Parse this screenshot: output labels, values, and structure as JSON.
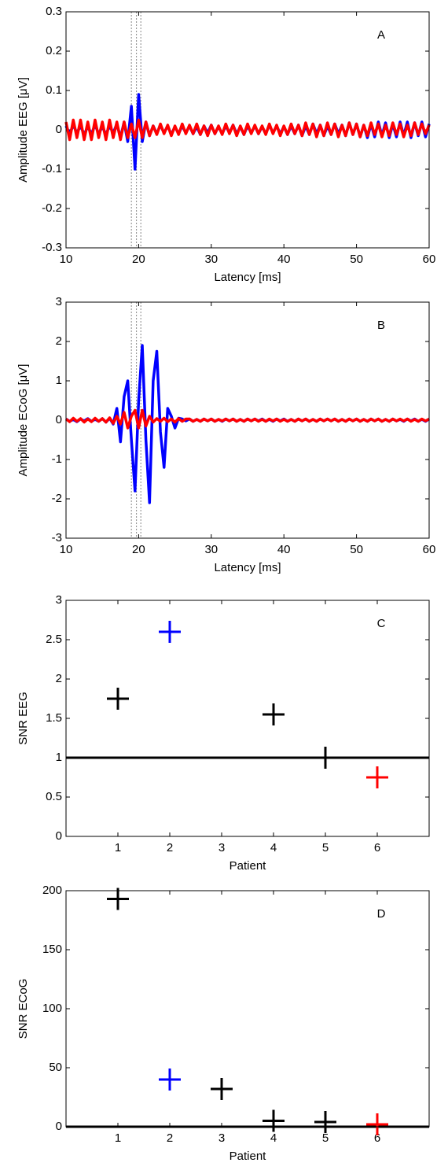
{
  "chart_data": [
    {
      "type": "line",
      "annotation": "A",
      "xlabel": "Latency [ms]",
      "ylabel": "Amplitude EEG [μV]",
      "x": [
        10,
        10.5,
        11,
        11.5,
        12,
        12.5,
        13,
        13.5,
        14,
        14.5,
        15,
        15.5,
        16,
        16.5,
        17,
        17.5,
        18,
        18.5,
        19,
        19.5,
        20,
        20.5,
        21,
        21.5,
        22,
        22.5,
        23,
        23.5,
        24,
        24.5,
        25,
        25.5,
        26,
        26.5,
        27,
        27.5,
        28,
        28.5,
        29,
        29.5,
        30,
        30.5,
        31,
        31.5,
        32,
        32.5,
        33,
        33.5,
        34,
        34.5,
        35,
        35.5,
        36,
        36.5,
        37,
        37.5,
        38,
        38.5,
        39,
        39.5,
        40,
        40.5,
        41,
        41.5,
        42,
        42.5,
        43,
        43.5,
        44,
        44.5,
        45,
        45.5,
        46,
        46.5,
        47,
        47.5,
        48,
        48.5,
        49,
        49.5,
        50,
        50.5,
        51,
        51.5,
        52,
        52.5,
        53,
        53.5,
        54,
        54.5,
        55,
        55.5,
        56,
        56.5,
        57,
        57.5,
        58,
        58.5,
        59,
        59.5,
        60
      ],
      "series": [
        {
          "color": "#0000ff",
          "values": [
            0.01,
            -0.01,
            0.012,
            -0.008,
            0.01,
            -0.012,
            0.008,
            -0.01,
            0.012,
            -0.01,
            0.008,
            -0.012,
            0.01,
            -0.008,
            0.015,
            -0.02,
            0.02,
            -0.03,
            0.06,
            -0.1,
            0.09,
            -0.03,
            0.02,
            -0.015,
            0.01,
            -0.01,
            0.012,
            -0.008,
            0.01,
            -0.012,
            0.008,
            -0.01,
            0.01,
            -0.008,
            0.01,
            -0.01,
            0.008,
            -0.012,
            0.01,
            -0.008,
            0.012,
            -0.01,
            0.008,
            -0.01,
            0.01,
            -0.008,
            0.012,
            -0.01,
            0.008,
            -0.012,
            0.01,
            -0.008,
            0.01,
            -0.01,
            0.008,
            -0.01,
            0.012,
            -0.008,
            0.01,
            -0.01,
            0.008,
            -0.012,
            0.01,
            -0.01,
            0.012,
            -0.015,
            0.01,
            -0.012,
            0.015,
            -0.01,
            0.012,
            -0.015,
            0.01,
            -0.012,
            0.015,
            -0.01,
            0.012,
            -0.015,
            0.018,
            -0.012,
            0.015,
            -0.018,
            0.012,
            -0.02,
            0.015,
            -0.018,
            0.02,
            -0.015,
            0.018,
            -0.02,
            0.015,
            -0.018,
            0.02,
            -0.015,
            0.02,
            -0.02,
            0.018,
            -0.015,
            0.02,
            -0.018,
            0.015
          ]
        },
        {
          "color": "#ff0000",
          "values": [
            0.02,
            -0.025,
            0.025,
            -0.02,
            0.025,
            -0.025,
            0.02,
            -0.025,
            0.025,
            -0.02,
            0.02,
            -0.025,
            0.025,
            -0.02,
            0.02,
            -0.025,
            0.02,
            -0.02,
            0.015,
            -0.02,
            0.025,
            -0.02,
            0.02,
            -0.015,
            0.01,
            -0.012,
            0.015,
            -0.01,
            0.012,
            -0.015,
            0.01,
            -0.012,
            0.015,
            -0.01,
            0.012,
            -0.01,
            0.015,
            -0.012,
            0.01,
            -0.015,
            0.012,
            -0.01,
            0.01,
            -0.012,
            0.015,
            -0.01,
            0.012,
            -0.015,
            0.01,
            -0.012,
            0.015,
            -0.01,
            0.012,
            -0.01,
            0.01,
            -0.012,
            0.015,
            -0.01,
            0.012,
            -0.015,
            0.01,
            -0.012,
            0.015,
            -0.01,
            0.012,
            -0.015,
            0.018,
            -0.012,
            0.015,
            -0.018,
            0.012,
            -0.015,
            0.018,
            -0.012,
            0.015,
            -0.018,
            0.012,
            -0.015,
            0.018,
            -0.012,
            0.015,
            -0.018,
            0.012,
            -0.015,
            0.018,
            -0.012,
            0.015,
            -0.018,
            0.012,
            -0.015,
            0.018,
            -0.012,
            0.015,
            -0.018,
            0.012,
            -0.015,
            0.018,
            -0.012,
            0.015,
            -0.01,
            0.012
          ]
        }
      ],
      "xlim": [
        10,
        60
      ],
      "ylim": [
        -0.3,
        0.3
      ],
      "xticks": [
        10,
        20,
        30,
        40,
        50,
        60
      ],
      "yticks": [
        -0.3,
        -0.2,
        -0.1,
        0,
        0.1,
        0.2,
        0.3
      ],
      "vlines": [
        19,
        19.7,
        20.3
      ]
    },
    {
      "type": "line",
      "annotation": "B",
      "xlabel": "Latency [ms]",
      "ylabel": "Amplitude ECoG [μV]",
      "x": [
        10,
        10.5,
        11,
        11.5,
        12,
        12.5,
        13,
        13.5,
        14,
        14.5,
        15,
        15.5,
        16,
        16.5,
        17,
        17.5,
        18,
        18.5,
        19,
        19.5,
        20,
        20.5,
        21,
        21.5,
        22,
        22.5,
        23,
        23.5,
        24,
        24.5,
        25,
        25.5,
        26,
        26.5,
        27,
        27.5,
        28,
        28.5,
        29,
        29.5,
        30,
        30.5,
        31,
        31.5,
        32,
        32.5,
        33,
        33.5,
        34,
        34.5,
        35,
        35.5,
        36,
        36.5,
        37,
        37.5,
        38,
        38.5,
        39,
        39.5,
        40,
        40.5,
        41,
        41.5,
        42,
        42.5,
        43,
        43.5,
        44,
        44.5,
        45,
        45.5,
        46,
        46.5,
        47,
        47.5,
        48,
        48.5,
        49,
        49.5,
        50,
        50.5,
        51,
        51.5,
        52,
        52.5,
        53,
        53.5,
        54,
        54.5,
        55,
        55.5,
        56,
        56.5,
        57,
        57.5,
        58,
        58.5,
        59,
        59.5,
        60
      ],
      "series": [
        {
          "color": "#0000ff",
          "values": [
            0.03,
            -0.03,
            0.02,
            -0.04,
            0.03,
            -0.02,
            0.04,
            -0.03,
            0.02,
            -0.03,
            0.04,
            -0.05,
            0.05,
            -0.1,
            0.3,
            -0.55,
            0.6,
            1.0,
            -0.5,
            -1.8,
            0.5,
            1.9,
            -0.5,
            -2.1,
            1.0,
            1.75,
            -0.3,
            -1.2,
            0.3,
            0.1,
            -0.2,
            0.05,
            0.03,
            -0.02,
            0.03,
            -0.03,
            0.02,
            -0.03,
            0.03,
            -0.02,
            0.03,
            -0.03,
            0.02,
            -0.03,
            0.03,
            -0.02,
            0.03,
            -0.03,
            0.02,
            -0.03,
            0.03,
            -0.02,
            0.03,
            -0.02,
            0.03,
            -0.03,
            0.02,
            -0.03,
            0.03,
            -0.02,
            0.03,
            -0.03,
            0.02,
            -0.03,
            0.03,
            -0.02,
            0.03,
            -0.03,
            0.02,
            -0.03,
            0.03,
            -0.02,
            0.03,
            -0.02,
            0.03,
            -0.03,
            0.02,
            -0.03,
            0.03,
            -0.02,
            0.03,
            -0.03,
            0.02,
            -0.03,
            0.03,
            -0.02,
            0.03,
            -0.03,
            0.02,
            -0.03,
            0.03,
            -0.02,
            0.02,
            -0.03,
            0.03,
            -0.02,
            0.03,
            -0.03,
            0.02,
            -0.03,
            0.03
          ]
        },
        {
          "color": "#ff0000",
          "values": [
            0.03,
            -0.04,
            0.05,
            -0.03,
            0.04,
            -0.05,
            0.03,
            -0.04,
            0.05,
            -0.03,
            0.04,
            -0.05,
            0.06,
            -0.08,
            0.1,
            -0.1,
            0.2,
            -0.2,
            0.1,
            0.25,
            -0.2,
            0.25,
            -0.15,
            0.1,
            -0.05,
            0.04,
            -0.03,
            0.05,
            -0.04,
            0.03,
            -0.05,
            0.04,
            -0.03,
            0.03,
            0.03,
            -0.03,
            0.02,
            -0.03,
            0.03,
            -0.02,
            0.03,
            -0.03,
            0.02,
            -0.02,
            0.03,
            -0.02,
            0.03,
            -0.03,
            0.02,
            -0.03,
            0.03,
            -0.02,
            0.03,
            -0.03,
            0.02,
            -0.03,
            0.03,
            -0.02,
            0.03,
            -0.03,
            0.02,
            -0.03,
            0.02,
            -0.03,
            0.03,
            -0.02,
            0.03,
            -0.03,
            0.02,
            -0.03,
            0.03,
            -0.02,
            0.03,
            -0.02,
            0.03,
            -0.03,
            0.02,
            -0.03,
            0.03,
            -0.02,
            0.03,
            -0.03,
            0.02,
            -0.03,
            0.03,
            -0.02,
            0.03,
            -0.03,
            0.02,
            -0.03,
            0.03,
            -0.02,
            0.03,
            -0.02,
            0.03,
            -0.03,
            0.02,
            -0.03,
            0.03,
            -0.02,
            0.03
          ]
        }
      ],
      "xlim": [
        10,
        60
      ],
      "ylim": [
        -3,
        3
      ],
      "xticks": [
        10,
        20,
        30,
        40,
        50,
        60
      ],
      "yticks": [
        -3,
        -2,
        -1,
        0,
        1,
        2,
        3
      ],
      "vlines": [
        19,
        19.7,
        20.3
      ]
    },
    {
      "type": "scatter",
      "annotation": "C",
      "xlabel": "Patient",
      "ylabel": "SNR EEG",
      "x": [
        1,
        2,
        4,
        5,
        6
      ],
      "values": [
        1.75,
        2.6,
        1.55,
        1.0,
        0.75
      ],
      "point_colors": [
        "#000000",
        "#0000ff",
        "#000000",
        "#000000",
        "#ff0000"
      ],
      "xlim": [
        0,
        7
      ],
      "ylim": [
        0,
        3
      ],
      "xticks": [
        1,
        2,
        3,
        4,
        5,
        6
      ],
      "yticks": [
        0,
        0.5,
        1,
        1.5,
        2,
        2.5,
        3
      ],
      "hline": 1
    },
    {
      "type": "scatter",
      "annotation": "D",
      "xlabel": "Patient",
      "ylabel": "SNR ECoG",
      "x": [
        1,
        2,
        3,
        4,
        5,
        6
      ],
      "values": [
        193,
        40,
        32,
        5,
        4,
        2
      ],
      "point_colors": [
        "#000000",
        "#0000ff",
        "#000000",
        "#000000",
        "#000000",
        "#ff0000"
      ],
      "xlim": [
        0,
        7
      ],
      "ylim": [
        0,
        200
      ],
      "xticks": [
        1,
        2,
        3,
        4,
        5,
        6
      ],
      "yticks": [
        0,
        50,
        100,
        150,
        200
      ],
      "hline": 0
    }
  ]
}
